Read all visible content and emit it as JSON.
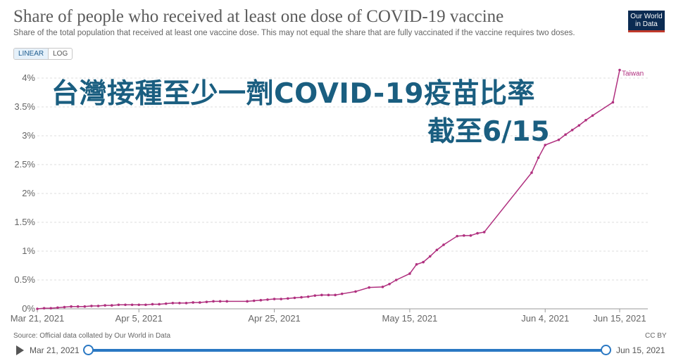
{
  "header": {
    "title": "Share of people who received at least one dose of COVID-19 vaccine",
    "subtitle": "Share of the total population that received at least one vaccine dose. This may not equal the share that are fully vaccinated if the vaccine requires two doses.",
    "logo_line1": "Our World",
    "logo_line2": "in Data"
  },
  "controls": {
    "linear_label": "LINEAR",
    "log_label": "LOG"
  },
  "overlay": {
    "line1": "台灣接種至少一劑COVID-19疫苗比率",
    "line2": "截至6/15"
  },
  "footer": {
    "source": "Source: Official data collated by Our World in Data",
    "license": "CC BY"
  },
  "timeline": {
    "start_label": "Mar 21, 2021",
    "end_label": "Jun 15, 2021"
  },
  "colors": {
    "series": "#b0307f",
    "grid": "#dddddd",
    "timeline": "#2a78c3"
  },
  "chart_data": {
    "type": "line",
    "title": "Share of people who received at least one dose of COVID-19 vaccine",
    "xlabel": "",
    "ylabel": "",
    "ylim": [
      0,
      4
    ],
    "yticks": [
      "0%",
      "0.5%",
      "1%",
      "1.5%",
      "2%",
      "2.5%",
      "3%",
      "3.5%",
      "4%"
    ],
    "xticks": [
      "Mar 21, 2021",
      "Apr 5, 2021",
      "Apr 25, 2021",
      "May 15, 2021",
      "Jun 4, 2021",
      "Jun 15, 2021"
    ],
    "grid": true,
    "series": [
      {
        "name": "Taiwan",
        "x": [
          "2021-03-21",
          "2021-03-22",
          "2021-03-23",
          "2021-03-24",
          "2021-03-25",
          "2021-03-26",
          "2021-03-27",
          "2021-03-28",
          "2021-03-29",
          "2021-03-30",
          "2021-03-31",
          "2021-04-01",
          "2021-04-02",
          "2021-04-03",
          "2021-04-04",
          "2021-04-05",
          "2021-04-06",
          "2021-04-07",
          "2021-04-08",
          "2021-04-09",
          "2021-04-10",
          "2021-04-11",
          "2021-04-12",
          "2021-04-13",
          "2021-04-14",
          "2021-04-15",
          "2021-04-16",
          "2021-04-17",
          "2021-04-18",
          "2021-04-21",
          "2021-04-22",
          "2021-04-23",
          "2021-04-24",
          "2021-04-25",
          "2021-04-26",
          "2021-04-27",
          "2021-04-28",
          "2021-04-29",
          "2021-04-30",
          "2021-05-01",
          "2021-05-02",
          "2021-05-03",
          "2021-05-04",
          "2021-05-05",
          "2021-05-07",
          "2021-05-09",
          "2021-05-11",
          "2021-05-12",
          "2021-05-13",
          "2021-05-15",
          "2021-05-16",
          "2021-05-17",
          "2021-05-18",
          "2021-05-19",
          "2021-05-20",
          "2021-05-22",
          "2021-05-23",
          "2021-05-24",
          "2021-05-25",
          "2021-05-26",
          "2021-06-02",
          "2021-06-03",
          "2021-06-04",
          "2021-06-06",
          "2021-06-07",
          "2021-06-08",
          "2021-06-09",
          "2021-06-10",
          "2021-06-11",
          "2021-06-14",
          "2021-06-15"
        ],
        "y": [
          0.0,
          0.01,
          0.01,
          0.02,
          0.03,
          0.04,
          0.04,
          0.04,
          0.05,
          0.05,
          0.06,
          0.06,
          0.07,
          0.07,
          0.07,
          0.07,
          0.07,
          0.08,
          0.08,
          0.09,
          0.1,
          0.1,
          0.1,
          0.11,
          0.11,
          0.12,
          0.13,
          0.13,
          0.13,
          0.13,
          0.14,
          0.15,
          0.16,
          0.17,
          0.17,
          0.18,
          0.19,
          0.2,
          0.21,
          0.23,
          0.24,
          0.24,
          0.24,
          0.26,
          0.3,
          0.37,
          0.38,
          0.43,
          0.5,
          0.61,
          0.77,
          0.81,
          0.91,
          1.02,
          1.11,
          1.26,
          1.27,
          1.27,
          1.31,
          1.33,
          2.36,
          2.62,
          2.84,
          2.93,
          3.02,
          3.1,
          3.18,
          3.27,
          3.35,
          3.58,
          4.14
        ]
      }
    ]
  }
}
